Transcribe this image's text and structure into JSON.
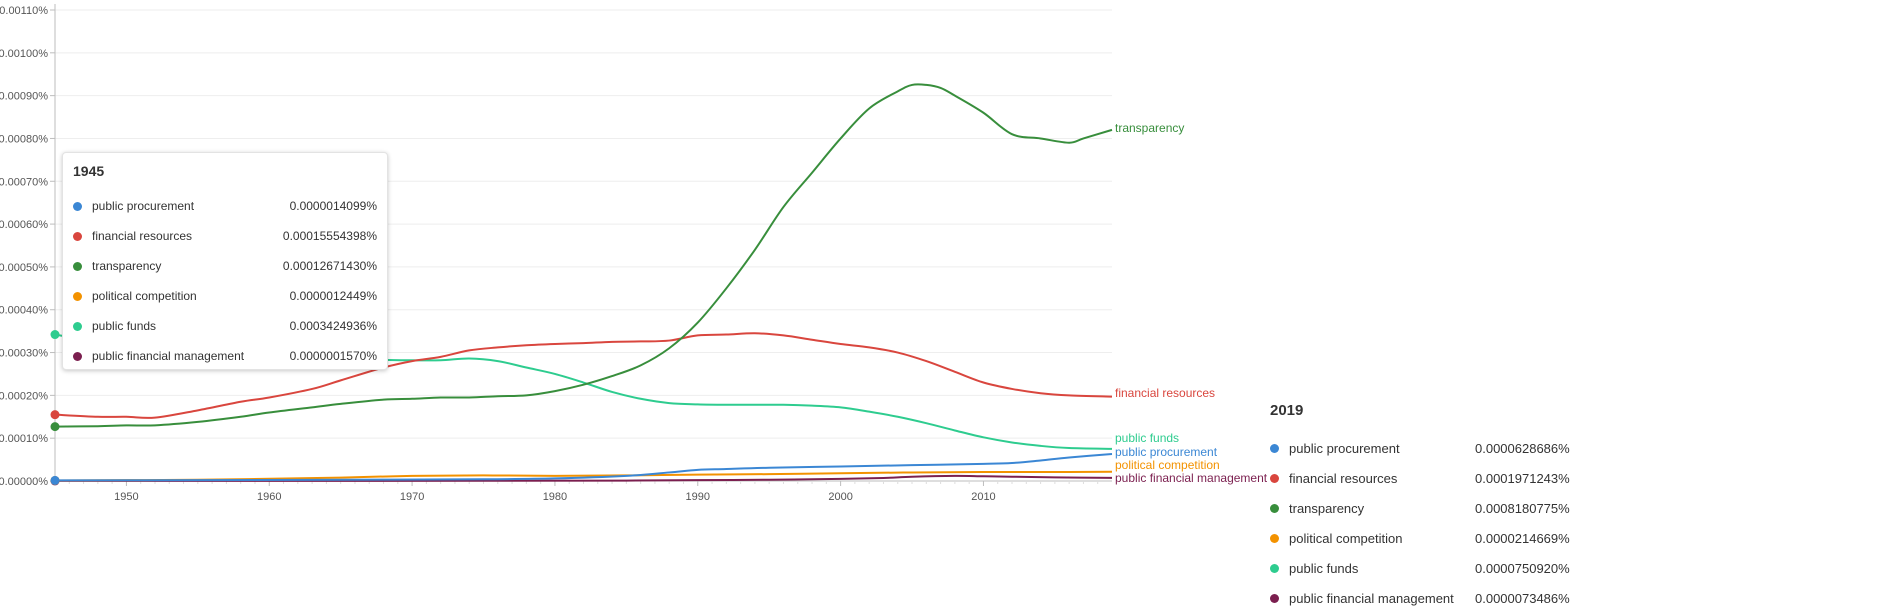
{
  "chart_data": {
    "type": "line",
    "title": "",
    "xlabel": "",
    "ylabel": "",
    "xlim": [
      1945,
      2019
    ],
    "ylim": [
      0,
      0.0011
    ],
    "y_ticks": [
      "0.00000%",
      "0.00010%",
      "0.00020%",
      "0.00030%",
      "0.00040%",
      "0.00050%",
      "0.00060%",
      "0.00070%",
      "0.00080%",
      "0.00090%",
      "0.00100%",
      "0.00110%"
    ],
    "x_ticks": [
      "1950",
      "1960",
      "1970",
      "1980",
      "1990",
      "2000",
      "2010"
    ],
    "grid": true,
    "series": [
      {
        "name": "transparency",
        "color": "#388e3c",
        "x": [
          1945,
          1948,
          1950,
          1952,
          1955,
          1958,
          1960,
          1963,
          1965,
          1968,
          1970,
          1972,
          1974,
          1976,
          1978,
          1980,
          1982,
          1984,
          1986,
          1988,
          1990,
          1992,
          1994,
          1996,
          1998,
          2000,
          2002,
          2004,
          2005,
          2006,
          2007,
          2008,
          2010,
          2012,
          2014,
          2016,
          2017,
          2019
        ],
        "y": [
          0.000127,
          0.000128,
          0.00013,
          0.00013,
          0.000138,
          0.00015,
          0.00016,
          0.000172,
          0.00018,
          0.00019,
          0.000192,
          0.000195,
          0.000195,
          0.000198,
          0.0002,
          0.00021,
          0.000225,
          0.000245,
          0.00027,
          0.00031,
          0.00037,
          0.00045,
          0.00054,
          0.00064,
          0.00072,
          0.0008,
          0.00087,
          0.00091,
          0.000925,
          0.000925,
          0.000918,
          0.0009,
          0.00086,
          0.00081,
          0.0008,
          0.00079,
          0.0008,
          0.00082
        ]
      },
      {
        "name": "financial resources",
        "color": "#d9463e",
        "x": [
          1945,
          1948,
          1950,
          1952,
          1955,
          1958,
          1960,
          1963,
          1965,
          1968,
          1970,
          1972,
          1974,
          1976,
          1978,
          1980,
          1982,
          1984,
          1986,
          1988,
          1990,
          1992,
          1994,
          1996,
          1998,
          2000,
          2002,
          2004,
          2006,
          2008,
          2010,
          2012,
          2014,
          2016,
          2019
        ],
        "y": [
          0.000155,
          0.00015,
          0.00015,
          0.000148,
          0.000165,
          0.000185,
          0.000195,
          0.000215,
          0.000235,
          0.000265,
          0.00028,
          0.00029,
          0.000305,
          0.000312,
          0.000317,
          0.00032,
          0.000322,
          0.000325,
          0.000326,
          0.000328,
          0.00034,
          0.000342,
          0.000345,
          0.00034,
          0.00033,
          0.00032,
          0.000312,
          0.0003,
          0.00028,
          0.000255,
          0.00023,
          0.000215,
          0.000205,
          0.0002,
          0.000197
        ]
      },
      {
        "name": "public funds",
        "color": "#2ecc8f",
        "x": [
          1945,
          1947,
          1950,
          1953,
          1955,
          1958,
          1960,
          1963,
          1965,
          1968,
          1970,
          1972,
          1974,
          1976,
          1978,
          1980,
          1982,
          1984,
          1986,
          1988,
          1990,
          1992,
          1994,
          1996,
          1998,
          2000,
          2002,
          2004,
          2006,
          2008,
          2010,
          2012,
          2014,
          2016,
          2019
        ],
        "y": [
          0.000342,
          0.00033,
          0.00031,
          0.000288,
          0.000278,
          0.00028,
          0.000282,
          0.000285,
          0.000287,
          0.000283,
          0.000282,
          0.000282,
          0.000286,
          0.00028,
          0.000265,
          0.00025,
          0.00023,
          0.000208,
          0.000192,
          0.000182,
          0.000179,
          0.000178,
          0.000178,
          0.000178,
          0.000176,
          0.000172,
          0.000162,
          0.00015,
          0.000135,
          0.000118,
          0.000102,
          9e-05,
          8.2e-05,
          7.7e-05,
          7.5e-05
        ]
      },
      {
        "name": "public procurement",
        "color": "#3b87d4",
        "x": [
          1945,
          1955,
          1965,
          1975,
          1980,
          1985,
          1988,
          1990,
          1992,
          1995,
          2000,
          2005,
          2010,
          2012,
          2014,
          2016,
          2019
        ],
        "y": [
          1.4e-06,
          2e-06,
          3e-06,
          4e-06,
          6e-06,
          1.2e-05,
          2e-05,
          2.6e-05,
          2.8e-05,
          3.1e-05,
          3.4e-05,
          3.7e-05,
          4e-05,
          4.2e-05,
          4.8e-05,
          5.5e-05,
          6.3e-05
        ]
      },
      {
        "name": "political competition",
        "color": "#f39200",
        "x": [
          1945,
          1955,
          1965,
          1970,
          1975,
          1980,
          1985,
          1990,
          1995,
          2000,
          2005,
          2010,
          2015,
          2019
        ],
        "y": [
          1.2e-06,
          3e-06,
          8e-06,
          1.2e-05,
          1.3e-05,
          1.2e-05,
          1.3e-05,
          1.5e-05,
          1.6e-05,
          1.8e-05,
          2e-05,
          2.1e-05,
          2.1e-05,
          2.15e-05
        ]
      },
      {
        "name": "public financial management",
        "color": "#7b1f4f",
        "x": [
          1945,
          1960,
          1975,
          1985,
          1990,
          1995,
          2000,
          2003,
          2005,
          2008,
          2010,
          2012,
          2015,
          2019
        ],
        "y": [
          2e-07,
          2e-07,
          5e-07,
          1e-06,
          2e-06,
          3e-06,
          5e-06,
          7e-06,
          1e-05,
          1.2e-05,
          1.1e-05,
          1e-05,
          8.5e-06,
          7.3e-06
        ]
      }
    ]
  },
  "tooltip": {
    "year": "1945",
    "rows": [
      {
        "name": "public procurement",
        "value": "0.0000014099%",
        "color": "#3b87d4"
      },
      {
        "name": "financial resources",
        "value": "0.00015554398%",
        "color": "#d9463e"
      },
      {
        "name": "transparency",
        "value": "0.00012671430%",
        "color": "#388e3c"
      },
      {
        "name": "political competition",
        "value": "0.0000012449%",
        "color": "#f39200"
      },
      {
        "name": "public funds",
        "value": "0.0003424936%",
        "color": "#2ecc8f"
      },
      {
        "name": "public financial management",
        "value": "0.0000001570%",
        "color": "#7b1f4f"
      }
    ]
  },
  "legend_panel": {
    "year": "2019",
    "rows": [
      {
        "name": "public procurement",
        "value": "0.0000628686%",
        "color": "#3b87d4"
      },
      {
        "name": "financial resources",
        "value": "0.0001971243%",
        "color": "#d9463e"
      },
      {
        "name": "transparency",
        "value": "0.0008180775%",
        "color": "#388e3c"
      },
      {
        "name": "political competition",
        "value": "0.0000214669%",
        "color": "#f39200"
      },
      {
        "name": "public funds",
        "value": "0.0000750920%",
        "color": "#2ecc8f"
      },
      {
        "name": "public financial management",
        "value": "0.0000073486%",
        "color": "#7b1f4f"
      }
    ]
  },
  "end_labels": [
    {
      "text": "transparency",
      "color": "#388e3c"
    },
    {
      "text": "financial resources",
      "color": "#d9463e"
    },
    {
      "text": "public funds",
      "color": "#2ecc8f"
    },
    {
      "text": "public procurement",
      "color": "#3b87d4"
    },
    {
      "text": "political competition",
      "color": "#f39200"
    },
    {
      "text": "public financial management",
      "color": "#7b1f4f"
    }
  ]
}
